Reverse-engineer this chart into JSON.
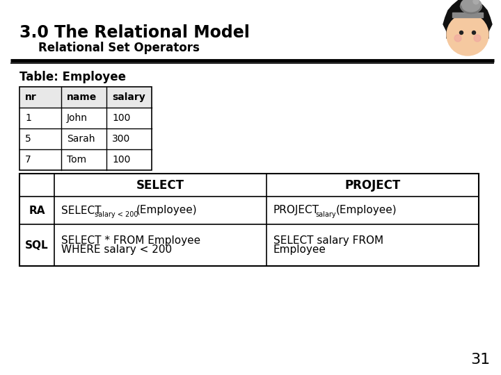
{
  "title_main": "3.0 The Relational Model",
  "title_sub": "Relational Set Operators",
  "table_label": "Table: Employee",
  "emp_headers": [
    "nr",
    "name",
    "salary"
  ],
  "emp_rows": [
    [
      "1",
      "John",
      "100"
    ],
    [
      "5",
      "Sarah",
      "300"
    ],
    [
      "7",
      "Tom",
      "100"
    ]
  ],
  "ops_col1_header": "SELECT",
  "ops_col2_header": "PROJECT",
  "ops_ra_select_main": "SELECT",
  "ops_ra_select_sub": "salary < 200",
  "ops_ra_select_rest": "(Employee)",
  "ops_ra_project_main": "PROJECT",
  "ops_ra_project_sub": "salary",
  "ops_ra_project_rest": "(Employee)",
  "ops_sql_select_line1": "SELECT * FROM Employee",
  "ops_sql_select_line2": "WHERE salary < 200",
  "ops_sql_project_line1": "SELECT salary FROM",
  "ops_sql_project_line2": "Employee",
  "page_number": "31",
  "bg_color": "#ffffff",
  "header_gray": "#e0e0e0",
  "line_color": "#000000",
  "title_color": "#000000"
}
